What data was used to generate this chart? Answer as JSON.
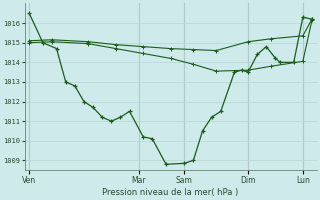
{
  "bg_color": "#ceeaea",
  "grid_major_color": "#b8d4d4",
  "grid_minor_color": "#d4e8e8",
  "vline_color": "#a0b8b8",
  "line_color": "#1a5c1a",
  "xlabel": "Pression niveau de la mer( hPa )",
  "ylim": [
    1008.5,
    1017.0
  ],
  "yticks": [
    1009,
    1010,
    1011,
    1012,
    1013,
    1014,
    1015,
    1016
  ],
  "xlim": [
    0,
    32
  ],
  "day_labels": [
    "Ven",
    "Mar",
    "Sam",
    "Dim",
    "Lun"
  ],
  "day_positions": [
    0.5,
    12.5,
    17.5,
    24.5,
    30.5
  ],
  "vline_positions": [
    0.5,
    12.5,
    17.5,
    24.5,
    30.5
  ],
  "series1_x": [
    0.5,
    2.0,
    3.5,
    4.5,
    5.5,
    6.5,
    7.5,
    8.5,
    9.5,
    10.5,
    11.5,
    13.0,
    14.0,
    15.5,
    17.5,
    18.5,
    19.5,
    20.5,
    21.5,
    23.0,
    23.8,
    24.5,
    25.5,
    26.5,
    27.5,
    28.0,
    29.5,
    30.5,
    31.5
  ],
  "series1_y": [
    1016.5,
    1015.0,
    1014.7,
    1013.0,
    1012.8,
    1012.0,
    1011.7,
    1011.2,
    1011.0,
    1011.2,
    1011.5,
    1010.2,
    1010.1,
    1008.8,
    1008.85,
    1009.0,
    1010.5,
    1011.2,
    1011.5,
    1013.5,
    1013.6,
    1013.5,
    1014.4,
    1014.8,
    1014.2,
    1014.0,
    1014.0,
    1016.3,
    1016.2
  ],
  "series2_x": [
    0.5,
    3.0,
    7.0,
    10.0,
    13.0,
    16.0,
    18.5,
    21.0,
    24.5,
    27.0,
    30.5,
    31.5
  ],
  "series2_y": [
    1015.1,
    1015.15,
    1015.05,
    1014.9,
    1014.8,
    1014.7,
    1014.65,
    1014.6,
    1015.05,
    1015.2,
    1015.35,
    1016.2
  ],
  "series3_x": [
    0.5,
    3.0,
    7.0,
    10.0,
    13.0,
    16.0,
    18.5,
    21.0,
    24.5,
    27.0,
    30.5,
    31.5
  ],
  "series3_y": [
    1015.0,
    1015.05,
    1014.95,
    1014.7,
    1014.45,
    1014.2,
    1013.9,
    1013.55,
    1013.6,
    1013.8,
    1014.05,
    1016.15
  ]
}
